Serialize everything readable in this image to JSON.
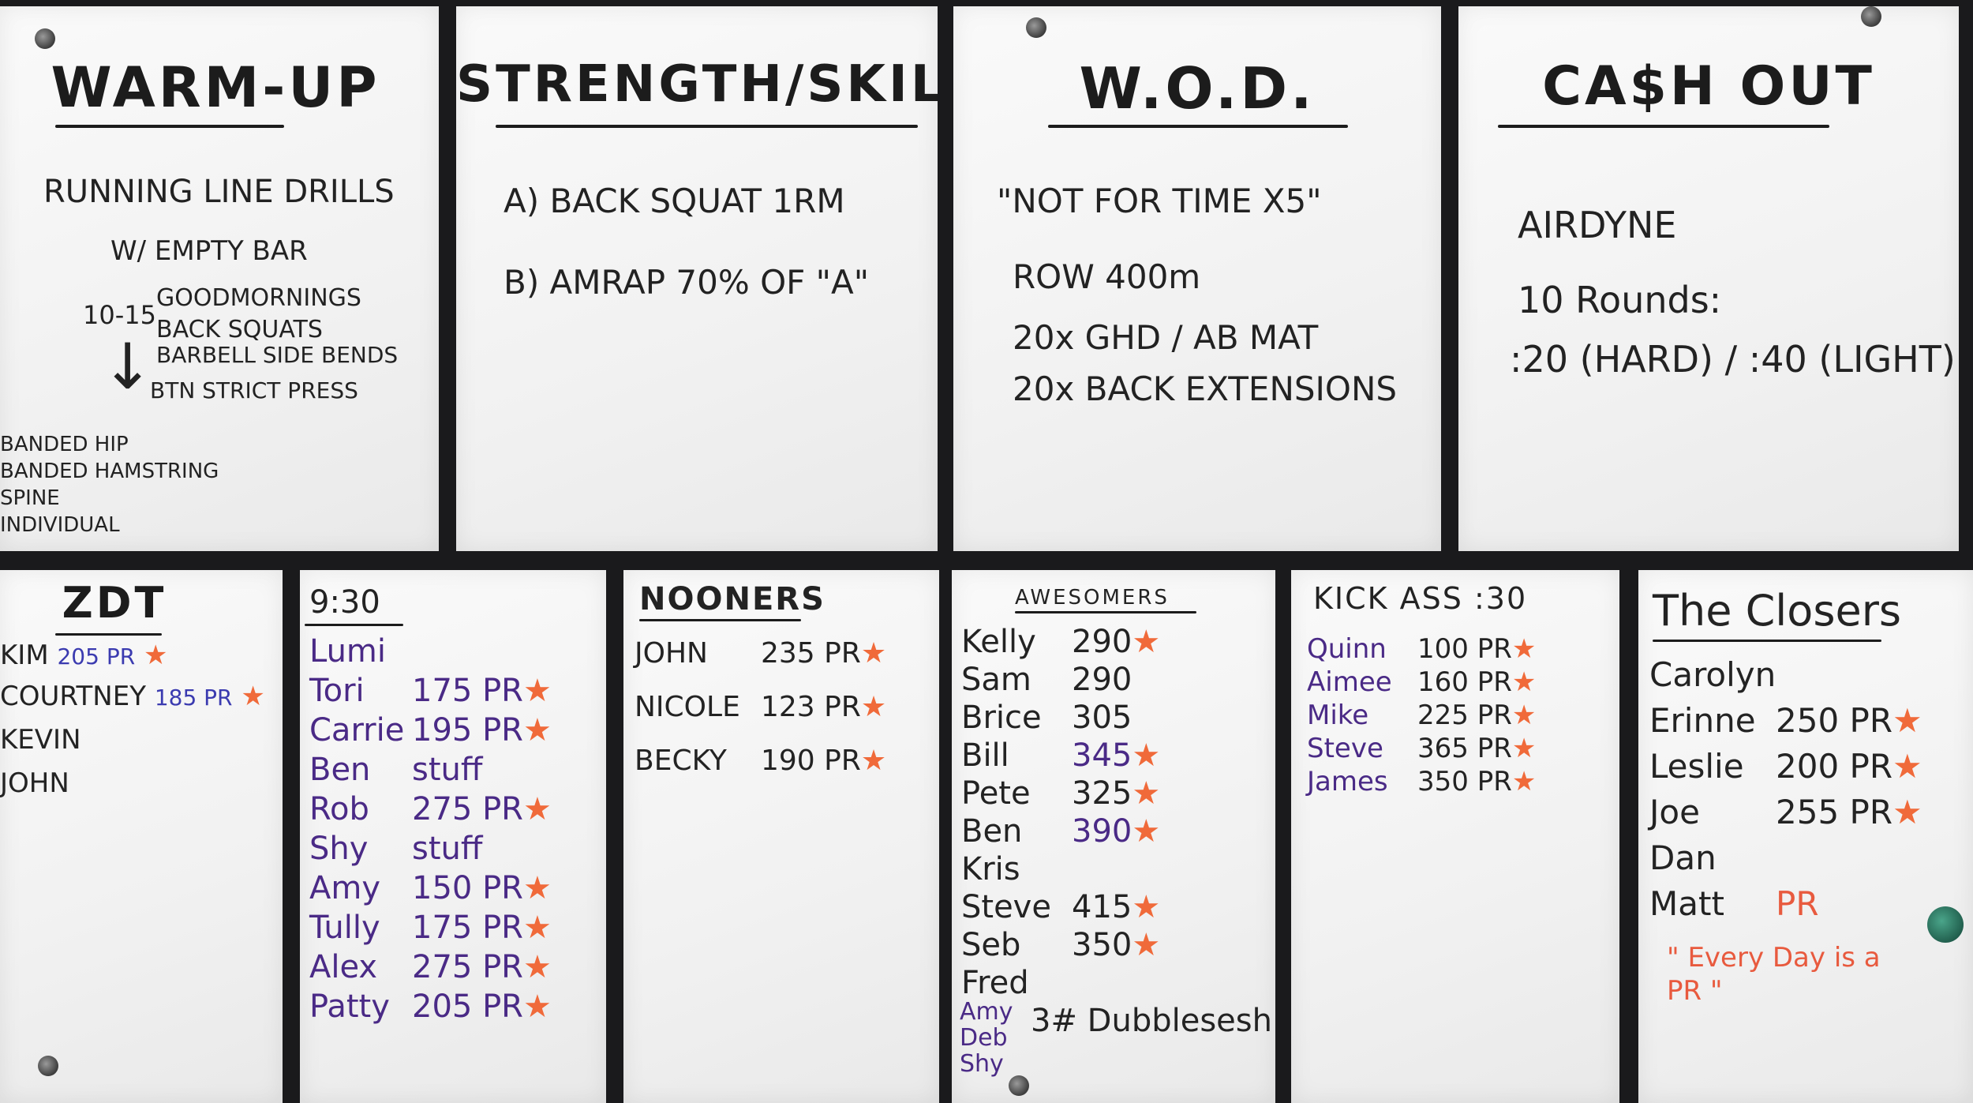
{
  "boards": {
    "warmup": {
      "title": "WARM-UP",
      "lines": [
        "RUNNING LINE DRILLS",
        "W/ EMPTY BAR",
        "10-15",
        "GOODMORNINGS",
        "BACK SQUATS",
        "BARBELL SIDE BENDS",
        "BTN STRICT PRESS"
      ],
      "arrow": "↓",
      "footer": [
        "BANDED HIP",
        "BANDED HAMSTRING",
        "SPINE",
        "INDIVIDUAL"
      ]
    },
    "strength": {
      "title": "STRENGTH/SKILL",
      "lines": [
        "A) BACK SQUAT 1RM",
        "B) AMRAP 70% OF \"A\""
      ]
    },
    "wod": {
      "title": "W.O.D.",
      "lines": [
        "\"NOT FOR TIME X5\"",
        "ROW 400m",
        "20x GHD / AB MAT",
        "20x BACK EXTENSIONS"
      ]
    },
    "cashout": {
      "title": "CA$H OUT",
      "lines": [
        "AIRDYNE",
        "10 Rounds:",
        ":20 (HARD) / :40 (LIGHT)"
      ]
    }
  },
  "classes": {
    "zdt": {
      "title": "ZDT",
      "entries": [
        {
          "name": "KIM",
          "value": "205 PR",
          "star": "★"
        },
        {
          "name": "COURTNEY",
          "value": "185 PR",
          "star": "★"
        },
        {
          "name": "KEVIN",
          "value": "",
          "star": ""
        },
        {
          "name": "JOHN",
          "value": "",
          "star": ""
        }
      ]
    },
    "c930": {
      "title": "9:30",
      "entries": [
        {
          "name": "Lumi",
          "value": "",
          "star": ""
        },
        {
          "name": "Tori",
          "value": "175 PR",
          "star": "★"
        },
        {
          "name": "Carrie",
          "value": "195 PR",
          "star": "★"
        },
        {
          "name": "Ben",
          "value": "stuff",
          "star": ""
        },
        {
          "name": "Rob",
          "value": "275 PR",
          "star": "★"
        },
        {
          "name": "Shy",
          "value": "stuff",
          "star": ""
        },
        {
          "name": "Amy",
          "value": "150 PR",
          "star": "★"
        },
        {
          "name": "Tully",
          "value": "175 PR",
          "star": "★"
        },
        {
          "name": "Alex",
          "value": "275 PR",
          "star": "★"
        },
        {
          "name": "Patty",
          "value": "205 PR",
          "star": "★"
        }
      ]
    },
    "nooners": {
      "title": "NOONERS",
      "entries": [
        {
          "name": "JOHN",
          "value": "235 PR",
          "star": "★"
        },
        {
          "name": "NICOLE",
          "value": "123 PR",
          "star": "★"
        },
        {
          "name": "BECKY",
          "value": "190 PR",
          "star": "★"
        }
      ]
    },
    "awesomers": {
      "title": "AWESOMERS",
      "entries": [
        {
          "name": "Kelly",
          "value": "290",
          "star": "★"
        },
        {
          "name": "Sam",
          "value": "290",
          "star": ""
        },
        {
          "name": "Brice",
          "value": "305",
          "star": ""
        },
        {
          "name": "Bill",
          "value": "345",
          "star": "★"
        },
        {
          "name": "Pete",
          "value": "325",
          "star": "★"
        },
        {
          "name": "Ben",
          "value": "390",
          "star": "★"
        },
        {
          "name": "Kris",
          "value": "",
          "star": ""
        },
        {
          "name": "Steve",
          "value": "415",
          "star": "★"
        },
        {
          "name": "Seb",
          "value": "350",
          "star": "★"
        },
        {
          "name": "Fred",
          "value": "",
          "star": ""
        }
      ],
      "group": [
        "Amy",
        "Deb",
        "Shy"
      ],
      "group_note": "3# Dubblesesh"
    },
    "kickass": {
      "title": "KICK ASS :30",
      "entries": [
        {
          "name": "Quinn",
          "value": "100 PR",
          "star": "★"
        },
        {
          "name": "Aimee",
          "value": "160 PR",
          "star": "★"
        },
        {
          "name": "Mike",
          "value": "225 PR",
          "star": "★"
        },
        {
          "name": "Steve",
          "value": "365 PR",
          "star": "★"
        },
        {
          "name": "James",
          "value": "350 PR",
          "star": "★"
        }
      ]
    },
    "closers": {
      "title": "The Closers",
      "entries": [
        {
          "name": "Carolyn",
          "value": "",
          "star": ""
        },
        {
          "name": "Erinne",
          "value": "250 PR",
          "star": "★"
        },
        {
          "name": "Leslie",
          "value": "200 PR",
          "star": "★"
        },
        {
          "name": "Joe",
          "value": "255 PR",
          "star": "★"
        },
        {
          "name": "Dan",
          "value": "",
          "star": ""
        },
        {
          "name": "Matt",
          "value": "PR",
          "star": ""
        }
      ],
      "quote": "\" Every Day is a PR \""
    }
  },
  "colors": {
    "ink_black": "#232323",
    "ink_purple": "#4a2a86",
    "ink_orange": "#f06a3a",
    "ink_blue": "#3b3bb0"
  }
}
